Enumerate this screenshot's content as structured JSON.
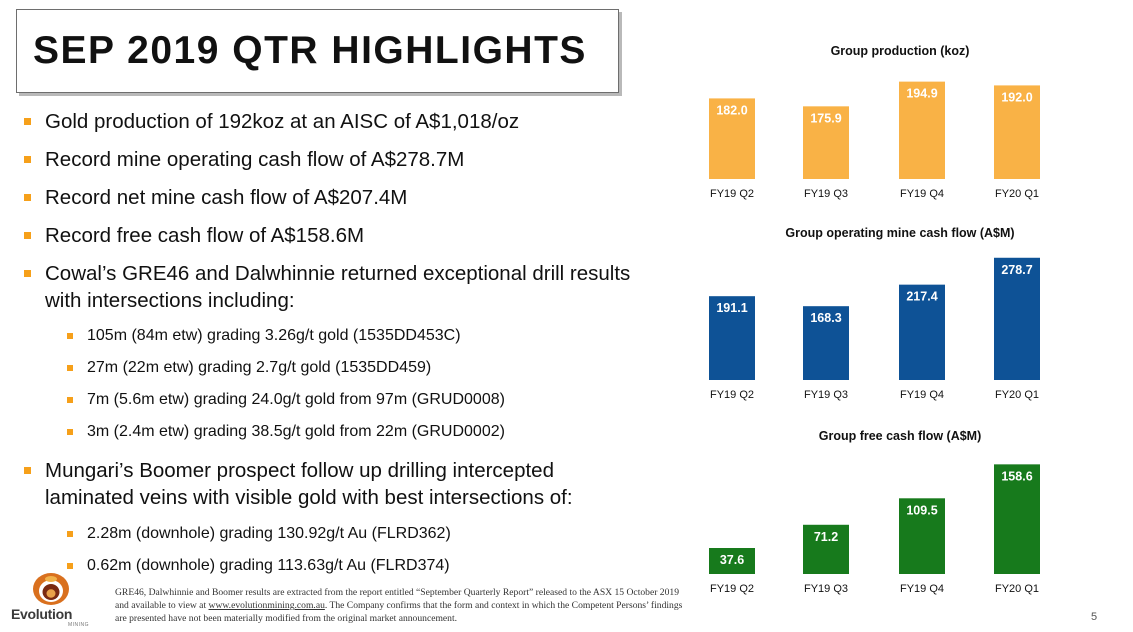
{
  "title": "SEP 2019 QTR HIGHLIGHTS",
  "bullets": [
    {
      "level": 1,
      "text": "Gold production of 192koz at an AISC of A$1,018/oz"
    },
    {
      "level": 1,
      "text": "Record mine operating cash flow of A$278.7M"
    },
    {
      "level": 1,
      "text": "Record net mine cash flow of A$207.4M"
    },
    {
      "level": 1,
      "text": "Record free cash flow of A$158.6M"
    },
    {
      "level": 1,
      "text": "Cowal’s GRE46 and Dalwhinnie returned exceptional drill results with intersections including:"
    },
    {
      "level": 2,
      "text": "105m (84m etw) grading 3.26g/t gold (1535DD453C)"
    },
    {
      "level": 2,
      "text": "27m (22m etw) grading 2.7g/t gold (1535DD459)"
    },
    {
      "level": 2,
      "text": "7m (5.6m etw) grading 24.0g/t gold from 97m (GRUD0008)"
    },
    {
      "level": 2,
      "text": "3m (2.4m etw) grading 38.5g/t gold from 22m (GRUD0002)"
    },
    {
      "level": 1,
      "text": "Mungari’s Boomer prospect follow up drilling intercepted laminated veins with visible gold with best intersections of:"
    },
    {
      "level": 2,
      "text": "2.28m (downhole) grading 130.92g/t Au (FLRD362)"
    },
    {
      "level": 2,
      "text": "0.62m (downhole) grading 113.63g/t Au (FLRD374)"
    }
  ],
  "footnote": {
    "text_before": "GRE46, Dalwhinnie and Boomer results are extracted from the report  entitled “September Quarterly Report” released to the ASX 15 October 2019 and available to view at ",
    "link": "www.evolutionmining.com.au",
    "text_after": ". The Company confirms that the form and context in which the Competent Persons’ findings are presented have not been materially modified from the original market announcement."
  },
  "logo": {
    "word": "Evolution",
    "sub": "MINING"
  },
  "page_number": "5",
  "colors": {
    "accent": "#f6a01a",
    "production": "#f9b246",
    "cash_flow": "#0e5296",
    "free_cash": "#177a1c"
  },
  "chart_data": [
    {
      "type": "bar",
      "title": "Group production (koz)",
      "categories": [
        "FY19 Q2",
        "FY19 Q3",
        "FY19 Q4",
        "FY20 Q1"
      ],
      "values": [
        182.0,
        175.9,
        194.9,
        192.0
      ],
      "value_labels": [
        "182.0",
        "175.9",
        "194.9",
        "192.0"
      ],
      "color": "#f9b246",
      "ylim": [
        120,
        200
      ]
    },
    {
      "type": "bar",
      "title": "Group operating mine cash flow (A$M)",
      "categories": [
        "FY19 Q2",
        "FY19 Q3",
        "FY19 Q4",
        "FY20 Q1"
      ],
      "values": [
        191.1,
        168.3,
        217.4,
        278.7
      ],
      "value_labels": [
        "191.1",
        "168.3",
        "217.4",
        "278.7"
      ],
      "color": "#0e5296",
      "ylim": [
        0,
        285
      ]
    },
    {
      "type": "bar",
      "title": "Group free cash flow (A$M)",
      "categories": [
        "FY19 Q2",
        "FY19 Q3",
        "FY19 Q4",
        "FY20 Q1"
      ],
      "values": [
        37.6,
        71.2,
        109.5,
        158.6
      ],
      "value_labels": [
        "37.6",
        "71.2",
        "109.5",
        "158.6"
      ],
      "color": "#177a1c",
      "ylim": [
        0,
        162
      ]
    }
  ]
}
